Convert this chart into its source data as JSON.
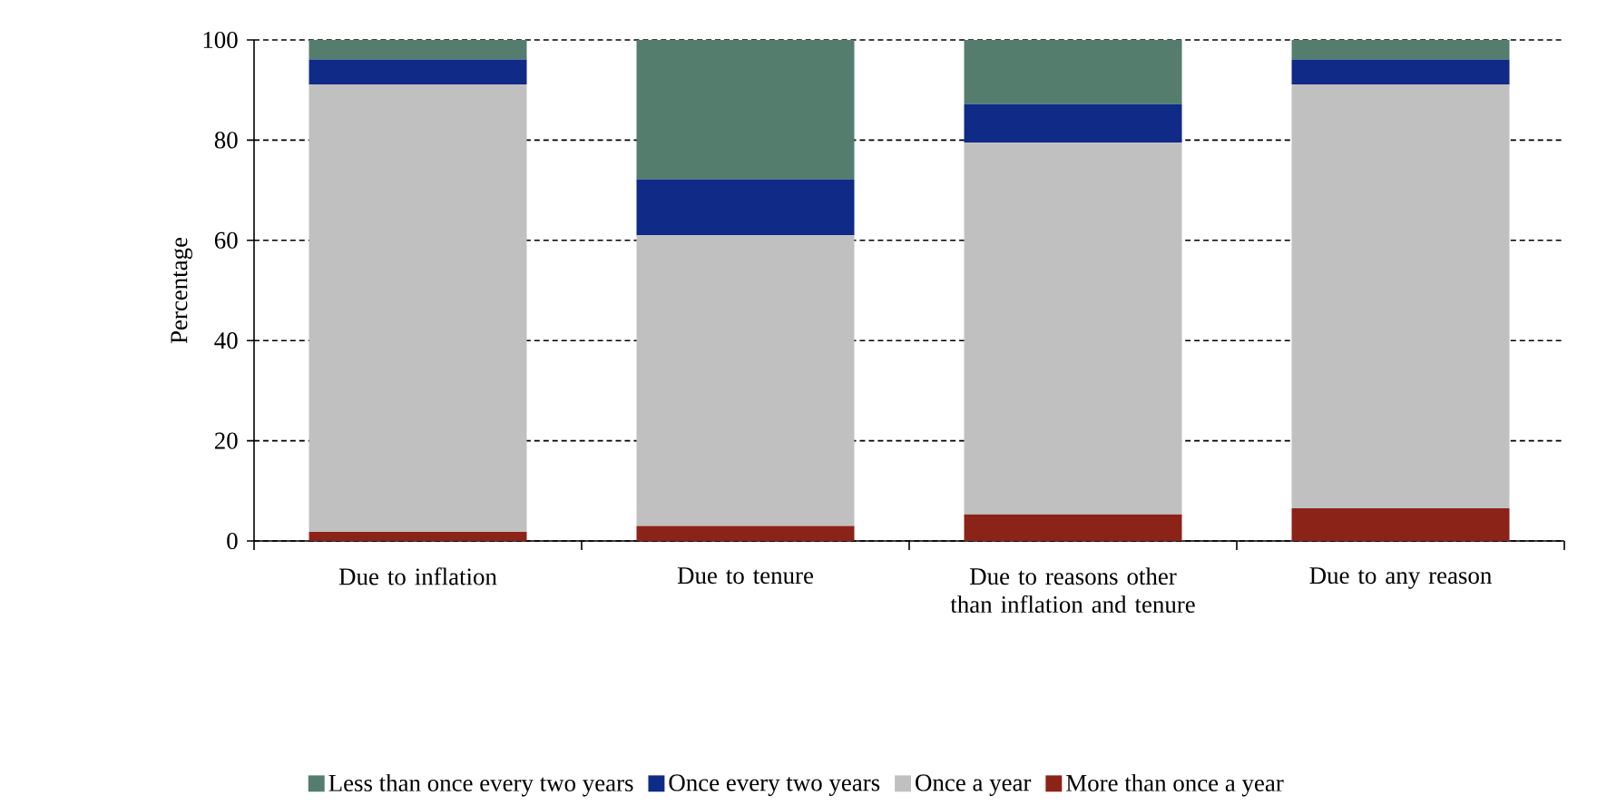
{
  "chart_data": {
    "type": "bar",
    "stacked": true,
    "ylabel": "Percentage",
    "categories": [
      "Due to inflation",
      "Due to tenure",
      "Due to reasons other than inflation and tenure",
      "Due to any reason"
    ],
    "series": [
      {
        "name": "More than once a year",
        "color": "#8b2318",
        "values": [
          1.8,
          3.0,
          5.3,
          6.5
        ]
      },
      {
        "name": "Once a year",
        "color": "#c0c0c0",
        "values": [
          89.3,
          58.0,
          74.2,
          84.6
        ]
      },
      {
        "name": "Once every two years",
        "color": "#0f2a87",
        "values": [
          5.0,
          11.2,
          7.7,
          5.0
        ]
      },
      {
        "name": "Less than once every two years",
        "color": "#547d6e",
        "values": [
          3.9,
          27.8,
          12.8,
          3.9
        ]
      }
    ],
    "ylim": [
      0,
      100
    ],
    "yticks": [
      0,
      20,
      40,
      60,
      80,
      100
    ],
    "grid": "y",
    "legend": "bottom"
  }
}
